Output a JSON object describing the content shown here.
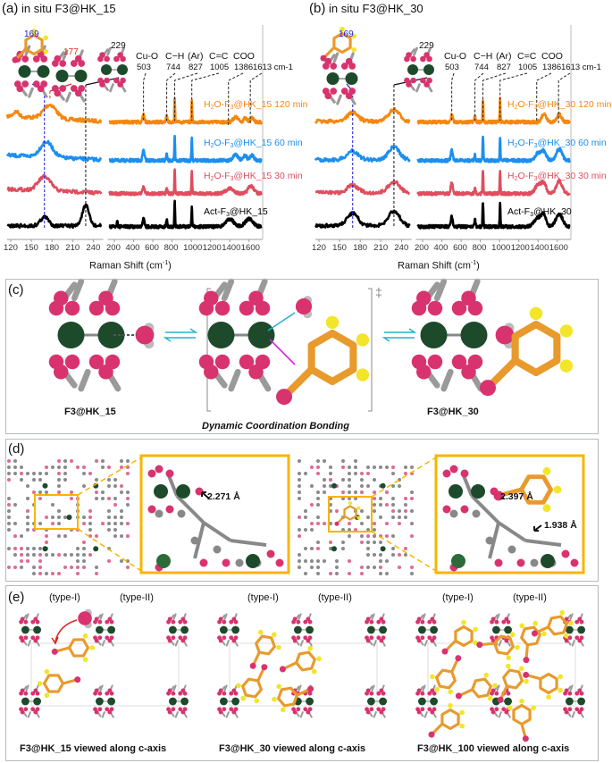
{
  "panels": {
    "a": {
      "letter": "(a)",
      "title": "in situ F3@HK_15"
    },
    "b": {
      "letter": "(b)",
      "title": "in situ F3@HK_30"
    },
    "c": {
      "letter": "(c)",
      "left_label": "F3@HK_15",
      "right_label": "F3@HK_30",
      "ts_symbol": "‡",
      "caption": "Dynamic Coordination Bonding"
    },
    "d": {
      "letter": "(d)",
      "dist1": "2.271 Å",
      "dist2": "2.397 Å",
      "dist3": "1.938 Å"
    },
    "e": {
      "letter": "(e)",
      "type1": "(type-I)",
      "type2": "(type-II)",
      "captions": [
        "F3@HK_15 viewed along c-axis",
        "F3@HK_30 viewed along c-axis",
        "F3@HK_100 viewed along c-axis"
      ]
    }
  },
  "chart_data": [
    {
      "type": "line",
      "title": "in situ F3@HK_15",
      "xlabel": "Raman Shift (cm-1)",
      "ylabel": "",
      "x_break": {
        "left_range": [
          115,
          252
        ],
        "right_range": [
          150,
          1730
        ]
      },
      "xticks_left": [
        120,
        150,
        180,
        210,
        240
      ],
      "xticks_right": [
        200,
        400,
        600,
        800,
        1000,
        1200,
        1400,
        1600
      ],
      "annotations": [
        {
          "name": "",
          "value": "169",
          "pos": 169,
          "color": "#1a1ad6"
        },
        {
          "name": "",
          "value": "177",
          "pos": 177,
          "color": "#e0302a"
        },
        {
          "name": "",
          "value": "229",
          "pos": 229,
          "color": "#111111"
        },
        {
          "name": "Cu-O",
          "value": "503",
          "pos": 503
        },
        {
          "name": "C−H",
          "value": "744",
          "pos": 744
        },
        {
          "name": "(Ar)",
          "value": "827",
          "pos": 827
        },
        {
          "name": "C=C",
          "value": "1005",
          "pos": 1005
        },
        {
          "name": "COO",
          "value": "1386",
          "pos": 1386
        },
        {
          "name": "",
          "value": "1613 cm-1",
          "pos": 1613
        }
      ],
      "series": [
        {
          "name": "H2O-F3@HK_15 120 min",
          "color": "#f5870f",
          "left_peaks": [
            [
              177,
              0.55,
              9
            ],
            [
              128,
              0.2,
              4
            ]
          ],
          "left_slope": 0.35,
          "right_peaks": [
            [
              503,
              0.35,
              10
            ],
            [
              744,
              0.3,
              6
            ],
            [
              827,
              0.95,
              4
            ],
            [
              1005,
              0.9,
              4
            ],
            [
              1460,
              0.2,
              25
            ],
            [
              1560,
              0.15,
              18
            ],
            [
              1630,
              0.15,
              20
            ]
          ]
        },
        {
          "name": "H2O-F3@HK_15 60 min",
          "color": "#1b8ff0",
          "left_peaks": [
            [
              172,
              0.6,
              9
            ]
          ],
          "left_slope": 0.3,
          "right_peaks": [
            [
              503,
              0.4,
              10
            ],
            [
              744,
              0.25,
              6
            ],
            [
              827,
              0.95,
              4
            ],
            [
              1005,
              0.95,
              4
            ],
            [
              1460,
              0.25,
              25
            ],
            [
              1560,
              0.2,
              18
            ],
            [
              1630,
              0.2,
              20
            ]
          ]
        },
        {
          "name": "H2O-F3@HK_15 30 min",
          "color": "#df4d5e",
          "left_peaks": [
            [
              169,
              0.55,
              9
            ]
          ],
          "left_slope": 0.25,
          "right_peaks": [
            [
              503,
              0.3,
              10
            ],
            [
              744,
              0.25,
              6
            ],
            [
              827,
              0.95,
              4
            ],
            [
              1005,
              0.95,
              4
            ],
            [
              1400,
              0.2,
              40
            ],
            [
              1620,
              0.3,
              30
            ]
          ]
        },
        {
          "name": "Act-F3@HK_15",
          "color": "#000000",
          "left_peaks": [
            [
              169,
              0.35,
              6
            ],
            [
              229,
              0.8,
              5
            ]
          ],
          "left_slope": 0.0,
          "right_peaks": [
            [
              230,
              0.3,
              4
            ],
            [
              503,
              0.35,
              10
            ],
            [
              744,
              0.3,
              6
            ],
            [
              827,
              1.0,
              4
            ],
            [
              1005,
              0.8,
              4
            ],
            [
              1400,
              0.3,
              40
            ],
            [
              1600,
              0.3,
              40
            ]
          ]
        }
      ]
    },
    {
      "type": "line",
      "title": "in situ F3@HK_30",
      "xlabel": "Raman Shift (cm-1)",
      "ylabel": "",
      "x_break": {
        "left_range": [
          115,
          252
        ],
        "right_range": [
          150,
          1730
        ]
      },
      "xticks_left": [
        120,
        150,
        180,
        210,
        240
      ],
      "xticks_right": [
        200,
        400,
        600,
        800,
        1000,
        1200,
        1400,
        1600
      ],
      "annotations": [
        {
          "name": "",
          "value": "169",
          "pos": 169,
          "color": "#1a1ad6"
        },
        {
          "name": "",
          "value": "229",
          "pos": 229,
          "color": "#111111"
        },
        {
          "name": "Cu-O",
          "value": "503",
          "pos": 503
        },
        {
          "name": "C−H",
          "value": "744",
          "pos": 744
        },
        {
          "name": "(Ar)",
          "value": "827",
          "pos": 827
        },
        {
          "name": "C=C",
          "value": "1005",
          "pos": 1005
        },
        {
          "name": "COO",
          "value": "1386",
          "pos": 1386
        },
        {
          "name": "",
          "value": "1613 cm-1",
          "pos": 1613
        }
      ],
      "series": [
        {
          "name": "H2O-F3@HK_30 120 min",
          "color": "#f5870f",
          "left_peaks": [
            [
              169,
              0.35,
              8
            ],
            [
              229,
              0.45,
              8
            ]
          ],
          "left_slope": 0.0,
          "right_peaks": [
            [
              503,
              0.3,
              10
            ],
            [
              744,
              0.25,
              6
            ],
            [
              827,
              0.95,
              4
            ],
            [
              1005,
              0.9,
              4
            ],
            [
              1460,
              0.3,
              25
            ],
            [
              1620,
              0.3,
              25
            ]
          ]
        },
        {
          "name": "H2O-F3@HK_30 60 min",
          "color": "#1b8ff0",
          "left_peaks": [
            [
              169,
              0.35,
              8
            ],
            [
              229,
              0.5,
              8
            ]
          ],
          "left_slope": 0.0,
          "right_peaks": [
            [
              503,
              0.4,
              10
            ],
            [
              744,
              0.25,
              6
            ],
            [
              827,
              0.95,
              4
            ],
            [
              1005,
              0.95,
              4
            ],
            [
              1400,
              0.3,
              30
            ],
            [
              1460,
              0.35,
              25
            ],
            [
              1620,
              0.45,
              30
            ]
          ]
        },
        {
          "name": "H2O-F3@HK_30 30 min",
          "color": "#df4d5e",
          "left_peaks": [
            [
              169,
              0.3,
              8
            ],
            [
              229,
              0.45,
              8
            ]
          ],
          "left_slope": 0.0,
          "right_peaks": [
            [
              503,
              0.45,
              10
            ],
            [
              744,
              0.25,
              6
            ],
            [
              827,
              0.95,
              4
            ],
            [
              1005,
              0.95,
              4
            ],
            [
              1400,
              0.35,
              30
            ],
            [
              1460,
              0.4,
              25
            ],
            [
              1620,
              0.5,
              30
            ]
          ]
        },
        {
          "name": "Act-F3@HK_30",
          "color": "#000000",
          "left_peaks": [
            [
              169,
              0.5,
              8
            ],
            [
              229,
              0.6,
              8
            ]
          ],
          "left_slope": 0.0,
          "right_peaks": [
            [
              503,
              0.4,
              10
            ],
            [
              744,
              0.3,
              6
            ],
            [
              827,
              1.0,
              4
            ],
            [
              1005,
              1.0,
              4
            ],
            [
              1400,
              0.35,
              40
            ],
            [
              1460,
              0.4,
              25
            ],
            [
              1620,
              0.5,
              35
            ]
          ]
        }
      ]
    }
  ]
}
